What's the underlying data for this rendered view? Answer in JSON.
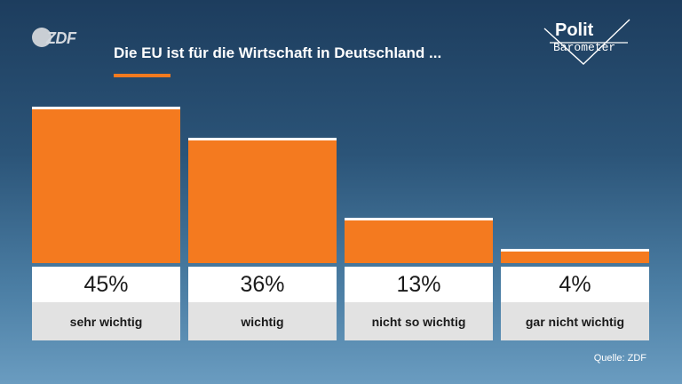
{
  "brand": {
    "zdf_logo_text": "ZDF",
    "polit_line1": "Polit",
    "polit_line2": "Barometer"
  },
  "title": "Die EU ist für die Wirtschaft in Deutschland ...",
  "source": "Quelle: ZDF",
  "colors": {
    "bar": "#f47a1f",
    "bar_top": "#ffffff",
    "value_bg": "#ffffff",
    "label_bg": "#e2e2e2",
    "accent": "#f47a1f"
  },
  "chart_data": {
    "type": "bar",
    "title": "Die EU ist für die Wirtschaft in Deutschland ...",
    "categories": [
      "sehr wichtig",
      "wichtig",
      "nicht so wichtig",
      "gar nicht wichtig"
    ],
    "values": [
      45,
      36,
      13,
      4
    ],
    "value_labels": [
      "45%",
      "36%",
      "13%",
      "4%"
    ],
    "unit": "%",
    "ylim": [
      0,
      45
    ],
    "grid": false,
    "legend": "none"
  }
}
